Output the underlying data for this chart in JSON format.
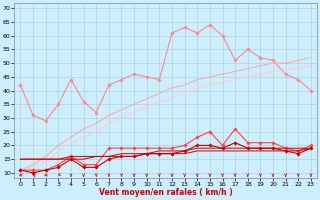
{
  "x": [
    0,
    1,
    2,
    3,
    4,
    5,
    6,
    7,
    8,
    9,
    10,
    11,
    12,
    13,
    14,
    15,
    16,
    17,
    18,
    19,
    20,
    21,
    22,
    23
  ],
  "series": [
    {
      "color": "#ff8888",
      "linewidth": 0.8,
      "marker": "D",
      "markersize": 1.8,
      "values": [
        42,
        31,
        29,
        35,
        44,
        36,
        32,
        42,
        44,
        46,
        45,
        44,
        61,
        63,
        61,
        64,
        60,
        51,
        55,
        52,
        51,
        46,
        44,
        40
      ]
    },
    {
      "color": "#ffaaaa",
      "linewidth": 0.8,
      "marker": null,
      "markersize": 0,
      "values": [
        11,
        13,
        16,
        20,
        23,
        26,
        28,
        31,
        33,
        35,
        37,
        39,
        41,
        42,
        44,
        45,
        46,
        47,
        48,
        49,
        50,
        50,
        51,
        52
      ]
    },
    {
      "color": "#ffcccc",
      "linewidth": 0.8,
      "marker": null,
      "markersize": 0,
      "values": [
        11,
        12,
        14,
        18,
        21,
        23,
        25,
        28,
        30,
        32,
        34,
        36,
        37,
        39,
        41,
        42,
        43,
        44,
        45,
        46,
        47,
        48,
        48,
        49
      ]
    },
    {
      "color": "#ff4444",
      "linewidth": 0.8,
      "marker": "D",
      "markersize": 1.8,
      "values": [
        11,
        11,
        11,
        13,
        16,
        13,
        13,
        19,
        19,
        19,
        19,
        19,
        19,
        20,
        23,
        25,
        20,
        26,
        21,
        21,
        21,
        19,
        18,
        20
      ]
    },
    {
      "color": "#cc0000",
      "linewidth": 0.8,
      "marker": "D",
      "markersize": 1.8,
      "values": [
        11,
        10,
        11,
        12,
        15,
        12,
        12,
        15,
        16,
        16,
        17,
        17,
        17,
        18,
        20,
        20,
        19,
        21,
        19,
        19,
        19,
        18,
        17,
        19
      ]
    },
    {
      "color": "#cc0000",
      "linewidth": 0.7,
      "marker": null,
      "markersize": 0,
      "values": [
        15,
        15,
        15,
        15,
        16,
        16,
        16,
        16,
        17,
        17,
        17,
        18,
        18,
        18,
        19,
        19,
        19,
        19,
        19,
        19,
        19,
        19,
        19,
        19
      ]
    },
    {
      "color": "#cc0000",
      "linewidth": 0.7,
      "marker": null,
      "markersize": 0,
      "values": [
        15,
        15,
        15,
        15,
        15,
        15,
        16,
        16,
        16,
        16,
        17,
        17,
        17,
        17,
        18,
        18,
        18,
        18,
        18,
        18,
        18,
        18,
        18,
        19
      ]
    }
  ],
  "xlabel": "Vent moyen/en rafales ( km/h )",
  "ylim": [
    8,
    72
  ],
  "xlim": [
    -0.5,
    23.5
  ],
  "yticks": [
    10,
    15,
    20,
    25,
    30,
    35,
    40,
    45,
    50,
    55,
    60,
    65,
    70
  ],
  "xticks": [
    0,
    1,
    2,
    3,
    4,
    5,
    6,
    7,
    8,
    9,
    10,
    11,
    12,
    13,
    14,
    15,
    16,
    17,
    18,
    19,
    20,
    21,
    22,
    23
  ],
  "bg_color": "#cceeff",
  "grid_color": "#aacccc",
  "arrow_color": "#cc0000",
  "arrow_angles": [
    270,
    315,
    270,
    225,
    180,
    180,
    180,
    180,
    180,
    180,
    180,
    180,
    180,
    180,
    180,
    180,
    180,
    180,
    180,
    180,
    180,
    180,
    180,
    180
  ]
}
